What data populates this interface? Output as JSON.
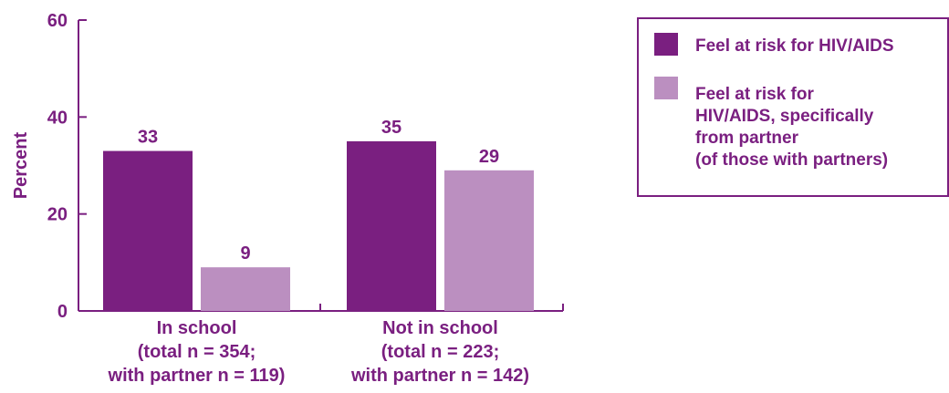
{
  "chart_data": {
    "type": "bar",
    "title": "",
    "xlabel": "",
    "ylabel": "Percent",
    "ylim": [
      0,
      60
    ],
    "yticks": [
      0,
      20,
      40,
      60
    ],
    "grid": false,
    "legend_position": "top-right",
    "categories": [
      {
        "lines": [
          "In school",
          "(total n = 354;",
          "with partner n = 119)"
        ]
      },
      {
        "lines": [
          "Not in school",
          "(total n = 223;",
          "with partner n = 142)"
        ]
      }
    ],
    "series": [
      {
        "name": "Feel at risk for HIV/AIDS",
        "legend_lines": [
          "Feel at risk for HIV/AIDS"
        ],
        "color": "#7a1f80",
        "values": [
          33,
          35
        ]
      },
      {
        "name": "Feel at risk for HIV/AIDS, specifically from partner (of those with partners)",
        "legend_lines": [
          "Feel at risk for",
          "HIV/AIDS, specifically",
          "from partner",
          "(of those with partners)"
        ],
        "color": "#bb8fc0",
        "values": [
          9,
          29
        ]
      }
    ],
    "axis_color": "#7a1f80",
    "text_color": "#7a1f80"
  }
}
